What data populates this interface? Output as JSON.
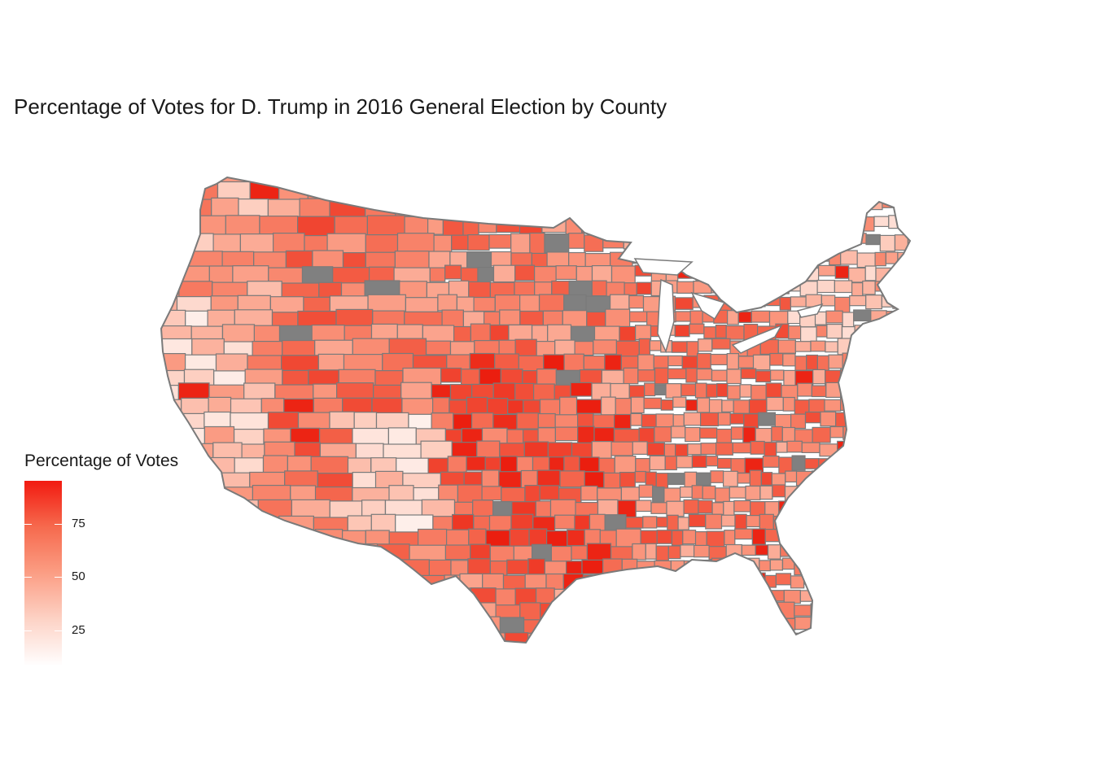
{
  "title": "Percentage of Votes for D. Trump in 2016 General Election by County",
  "legend": {
    "title": "Percentage of Votes",
    "ticks": [
      "75",
      "50",
      "25"
    ],
    "range": [
      8,
      96
    ],
    "colors": {
      "low": "#ffffff",
      "high": "#f21a10",
      "missing": "#808080",
      "border": "#7a7a7a"
    }
  },
  "map": {
    "region": "Contiguous United States",
    "unit": "county"
  }
}
